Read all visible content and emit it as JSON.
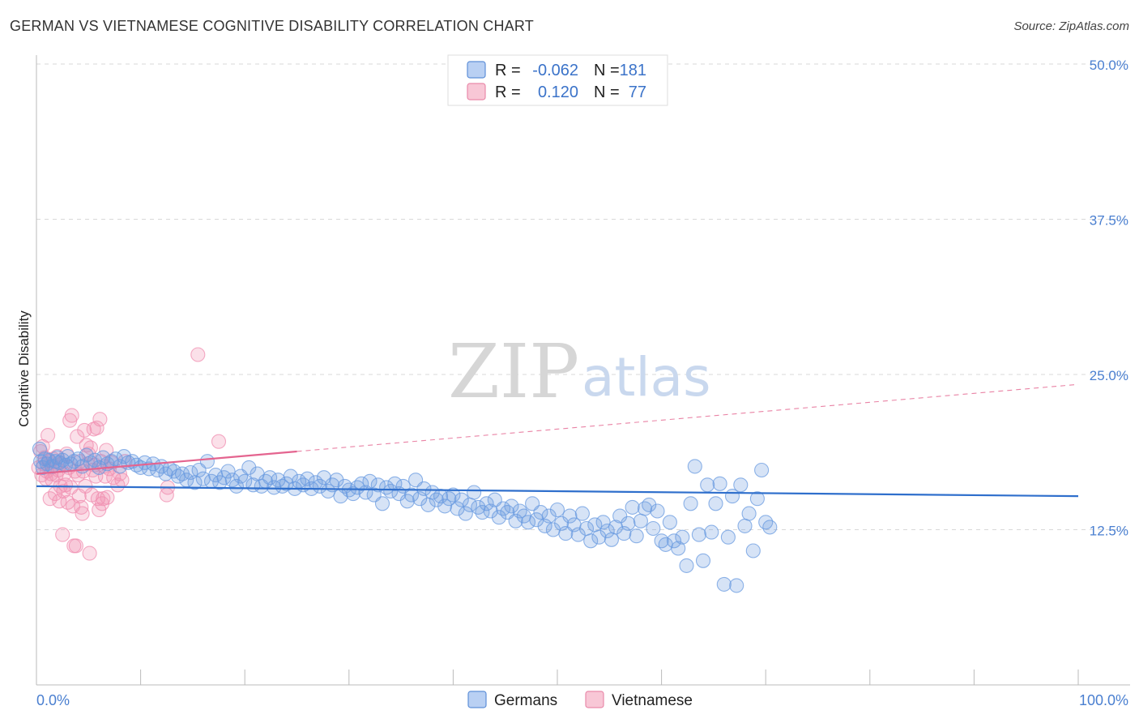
{
  "header": {
    "title": "GERMAN VS VIETNAMESE COGNITIVE DISABILITY CORRELATION CHART",
    "source": "Source: ZipAtlas.com"
  },
  "watermark": {
    "zip": "ZIP",
    "atlas": "atlas"
  },
  "legend": {
    "rows": [
      {
        "r_label": "R =",
        "r_value": "-0.062",
        "n_label": "N =",
        "n_value": "181",
        "color": "#8fb4ea"
      },
      {
        "r_label": "R =",
        "r_value": "0.120",
        "n_label": "N =",
        "n_value": "77",
        "color": "#f3a8c0"
      }
    ]
  },
  "bottom_legend": {
    "germans": "Germans",
    "vietnamese": "Vietnamese"
  },
  "chart_data": {
    "type": "scatter",
    "title": "GERMAN VS VIETNAMESE COGNITIVE DISABILITY CORRELATION CHART",
    "xlabel": "",
    "ylabel": "Cognitive Disability",
    "xlim": [
      0,
      100
    ],
    "ylim": [
      0,
      50
    ],
    "x_tick_labels": [
      "0.0%",
      "100.0%"
    ],
    "y_ticks": [
      12.5,
      25.0,
      37.5,
      50.0
    ],
    "y_tick_labels": [
      "12.5%",
      "25.0%",
      "37.5%",
      "50.0%"
    ],
    "grid": "horizontal dashed",
    "legend_position": "top-center",
    "colors": {
      "germans": "#6a9be0",
      "germans_line": "#2f6fcc",
      "vietnamese": "#f08eb0",
      "vietnamese_line": "#e4648f"
    },
    "series": [
      {
        "name": "Germans",
        "r": -0.062,
        "n": 181,
        "trend": {
          "x": [
            0,
            100
          ],
          "y": [
            16.0,
            15.2
          ]
        },
        "points": [
          [
            0.3,
            19.0
          ],
          [
            0.4,
            18.0
          ],
          [
            0.6,
            17.5
          ],
          [
            0.8,
            18.2
          ],
          [
            1.0,
            17.8
          ],
          [
            1.2,
            18.1
          ],
          [
            1.5,
            17.6
          ],
          [
            1.8,
            18.0
          ],
          [
            2.0,
            18.3
          ],
          [
            2.2,
            17.9
          ],
          [
            2.5,
            18.1
          ],
          [
            2.8,
            17.7
          ],
          [
            3.0,
            18.4
          ],
          [
            3.3,
            17.8
          ],
          [
            3.6,
            18.0
          ],
          [
            4.0,
            18.2
          ],
          [
            4.4,
            17.6
          ],
          [
            4.8,
            18.5
          ],
          [
            5.2,
            17.9
          ],
          [
            5.6,
            18.1
          ],
          [
            6.0,
            17.5
          ],
          [
            6.4,
            18.3
          ],
          [
            6.8,
            17.8
          ],
          [
            7.2,
            18.0
          ],
          [
            7.6,
            18.2
          ],
          [
            8.0,
            17.6
          ],
          [
            8.4,
            18.4
          ],
          [
            8.8,
            17.9
          ],
          [
            9.2,
            18.0
          ],
          [
            9.6,
            17.7
          ],
          [
            10.0,
            17.5
          ],
          [
            10.4,
            17.9
          ],
          [
            10.8,
            17.4
          ],
          [
            11.2,
            17.8
          ],
          [
            11.6,
            17.3
          ],
          [
            12.0,
            17.6
          ],
          [
            12.4,
            17.0
          ],
          [
            12.8,
            17.4
          ],
          [
            13.2,
            17.2
          ],
          [
            13.6,
            16.8
          ],
          [
            14.0,
            17.0
          ],
          [
            14.4,
            16.5
          ],
          [
            14.8,
            17.1
          ],
          [
            15.2,
            16.3
          ],
          [
            15.6,
            17.3
          ],
          [
            16.0,
            16.6
          ],
          [
            16.4,
            18.0
          ],
          [
            16.8,
            16.4
          ],
          [
            17.2,
            16.9
          ],
          [
            17.6,
            16.3
          ],
          [
            18.0,
            16.7
          ],
          [
            18.4,
            17.2
          ],
          [
            18.8,
            16.5
          ],
          [
            19.2,
            16.0
          ],
          [
            19.6,
            16.8
          ],
          [
            20.0,
            16.4
          ],
          [
            20.4,
            17.5
          ],
          [
            20.8,
            16.1
          ],
          [
            21.2,
            17.0
          ],
          [
            21.6,
            16.0
          ],
          [
            22.0,
            16.4
          ],
          [
            22.4,
            16.7
          ],
          [
            22.8,
            15.9
          ],
          [
            23.2,
            16.5
          ],
          [
            23.6,
            16.0
          ],
          [
            24.0,
            16.2
          ],
          [
            24.4,
            16.8
          ],
          [
            24.8,
            15.8
          ],
          [
            25.2,
            16.4
          ],
          [
            25.6,
            16.1
          ],
          [
            26.0,
            16.6
          ],
          [
            26.4,
            15.8
          ],
          [
            26.8,
            16.3
          ],
          [
            27.2,
            16.0
          ],
          [
            27.6,
            16.7
          ],
          [
            28.0,
            15.6
          ],
          [
            28.4,
            16.1
          ],
          [
            28.8,
            16.5
          ],
          [
            29.2,
            15.2
          ],
          [
            29.6,
            16.0
          ],
          [
            30.0,
            15.7
          ],
          [
            30.4,
            15.4
          ],
          [
            30.8,
            15.9
          ],
          [
            31.2,
            16.2
          ],
          [
            31.6,
            15.5
          ],
          [
            32.0,
            16.4
          ],
          [
            32.4,
            15.3
          ],
          [
            32.8,
            16.1
          ],
          [
            33.2,
            14.6
          ],
          [
            33.6,
            15.9
          ],
          [
            34.0,
            15.6
          ],
          [
            34.4,
            16.2
          ],
          [
            34.8,
            15.4
          ],
          [
            35.2,
            16.0
          ],
          [
            35.6,
            14.8
          ],
          [
            36.0,
            15.3
          ],
          [
            36.4,
            16.5
          ],
          [
            36.8,
            15.0
          ],
          [
            37.2,
            15.8
          ],
          [
            37.6,
            14.5
          ],
          [
            38.0,
            15.5
          ],
          [
            38.4,
            14.9
          ],
          [
            38.8,
            15.2
          ],
          [
            39.2,
            14.4
          ],
          [
            39.6,
            15.0
          ],
          [
            40.0,
            15.3
          ],
          [
            40.4,
            14.2
          ],
          [
            40.8,
            14.9
          ],
          [
            41.2,
            13.8
          ],
          [
            41.6,
            14.5
          ],
          [
            42.0,
            15.5
          ],
          [
            42.4,
            14.3
          ],
          [
            42.8,
            13.9
          ],
          [
            43.2,
            14.6
          ],
          [
            43.6,
            14.0
          ],
          [
            44.0,
            14.9
          ],
          [
            44.4,
            13.5
          ],
          [
            44.8,
            14.2
          ],
          [
            45.2,
            13.9
          ],
          [
            45.6,
            14.4
          ],
          [
            46.0,
            13.2
          ],
          [
            46.4,
            14.0
          ],
          [
            46.8,
            13.6
          ],
          [
            47.2,
            13.1
          ],
          [
            47.6,
            14.6
          ],
          [
            48.0,
            13.3
          ],
          [
            48.4,
            13.9
          ],
          [
            48.8,
            12.8
          ],
          [
            49.2,
            13.6
          ],
          [
            49.6,
            12.5
          ],
          [
            50.0,
            14.1
          ],
          [
            50.4,
            13.0
          ],
          [
            50.8,
            12.2
          ],
          [
            51.2,
            13.6
          ],
          [
            51.6,
            12.9
          ],
          [
            52.0,
            12.1
          ],
          [
            52.4,
            13.8
          ],
          [
            52.8,
            12.6
          ],
          [
            53.2,
            11.6
          ],
          [
            53.6,
            12.9
          ],
          [
            54.0,
            11.9
          ],
          [
            54.4,
            13.1
          ],
          [
            54.8,
            12.4
          ],
          [
            55.2,
            11.7
          ],
          [
            55.6,
            12.7
          ],
          [
            56.0,
            13.6
          ],
          [
            56.4,
            12.2
          ],
          [
            56.8,
            13.0
          ],
          [
            57.2,
            14.3
          ],
          [
            57.6,
            12.0
          ],
          [
            58.0,
            13.2
          ],
          [
            58.4,
            14.2
          ],
          [
            58.8,
            14.5
          ],
          [
            59.2,
            12.6
          ],
          [
            59.6,
            14.0
          ],
          [
            60.0,
            11.6
          ],
          [
            60.4,
            11.3
          ],
          [
            60.8,
            13.1
          ],
          [
            61.2,
            11.6
          ],
          [
            61.6,
            11.0
          ],
          [
            62.0,
            11.9
          ],
          [
            62.4,
            9.6
          ],
          [
            62.8,
            14.6
          ],
          [
            63.2,
            17.6
          ],
          [
            63.6,
            12.1
          ],
          [
            64.0,
            10.0
          ],
          [
            64.4,
            16.1
          ],
          [
            64.8,
            12.3
          ],
          [
            65.2,
            14.6
          ],
          [
            65.6,
            16.2
          ],
          [
            66.0,
            8.1
          ],
          [
            66.4,
            11.9
          ],
          [
            66.8,
            15.2
          ],
          [
            67.2,
            8.0
          ],
          [
            67.6,
            16.1
          ],
          [
            68.0,
            12.8
          ],
          [
            68.4,
            13.8
          ],
          [
            68.8,
            10.8
          ],
          [
            69.2,
            15.0
          ],
          [
            69.6,
            17.3
          ],
          [
            70.0,
            13.1
          ],
          [
            70.4,
            12.7
          ]
        ]
      },
      {
        "name": "Vietnamese",
        "r": 0.12,
        "n": 77,
        "trend": {
          "x": [
            0,
            25
          ],
          "y": [
            17.0,
            18.8
          ]
        },
        "points": [
          [
            0.2,
            17.5
          ],
          [
            0.4,
            18.8
          ],
          [
            0.5,
            16.9
          ],
          [
            0.6,
            19.2
          ],
          [
            0.7,
            17.8
          ],
          [
            0.8,
            18.3
          ],
          [
            0.9,
            16.6
          ],
          [
            1.0,
            17.2
          ],
          [
            1.1,
            20.1
          ],
          [
            1.2,
            18.0
          ],
          [
            1.3,
            15.0
          ],
          [
            1.4,
            17.0
          ],
          [
            1.5,
            16.5
          ],
          [
            1.6,
            18.2
          ],
          [
            1.7,
            17.6
          ],
          [
            1.8,
            15.4
          ],
          [
            1.9,
            16.9
          ],
          [
            2.0,
            18.4
          ],
          [
            2.1,
            17.3
          ],
          [
            2.2,
            14.8
          ],
          [
            2.3,
            16.0
          ],
          [
            2.4,
            17.8
          ],
          [
            2.5,
            12.1
          ],
          [
            2.6,
            15.6
          ],
          [
            2.7,
            17.0
          ],
          [
            2.8,
            16.1
          ],
          [
            2.9,
            18.6
          ],
          [
            3.0,
            14.7
          ],
          [
            3.1,
            17.5
          ],
          [
            3.2,
            21.3
          ],
          [
            3.3,
            15.9
          ],
          [
            3.4,
            21.7
          ],
          [
            3.5,
            14.4
          ],
          [
            3.6,
            11.2
          ],
          [
            3.7,
            17.2
          ],
          [
            3.8,
            11.2
          ],
          [
            3.9,
            20.0
          ],
          [
            4.0,
            16.9
          ],
          [
            4.1,
            15.2
          ],
          [
            4.2,
            18.0
          ],
          [
            4.3,
            14.3
          ],
          [
            4.4,
            13.8
          ],
          [
            4.5,
            17.2
          ],
          [
            4.6,
            20.5
          ],
          [
            4.7,
            16.0
          ],
          [
            4.8,
            19.3
          ],
          [
            4.9,
            17.8
          ],
          [
            5.0,
            18.6
          ],
          [
            5.1,
            10.6
          ],
          [
            5.2,
            19.1
          ],
          [
            5.3,
            15.3
          ],
          [
            5.4,
            17.3
          ],
          [
            5.5,
            20.6
          ],
          [
            5.6,
            17.7
          ],
          [
            5.7,
            16.8
          ],
          [
            5.8,
            20.7
          ],
          [
            5.9,
            15.0
          ],
          [
            6.0,
            14.1
          ],
          [
            6.1,
            21.4
          ],
          [
            6.2,
            18.0
          ],
          [
            6.3,
            14.6
          ],
          [
            6.4,
            15.0
          ],
          [
            6.5,
            17.6
          ],
          [
            6.6,
            16.8
          ],
          [
            6.7,
            18.9
          ],
          [
            6.8,
            15.1
          ],
          [
            7.0,
            17.4
          ],
          [
            7.2,
            17.9
          ],
          [
            7.4,
            16.7
          ],
          [
            7.8,
            16.1
          ],
          [
            8.0,
            17.0
          ],
          [
            8.2,
            16.5
          ],
          [
            8.5,
            18.0
          ],
          [
            12.5,
            15.3
          ],
          [
            12.6,
            15.9
          ],
          [
            15.5,
            26.6
          ],
          [
            17.5,
            19.6
          ]
        ]
      }
    ]
  }
}
